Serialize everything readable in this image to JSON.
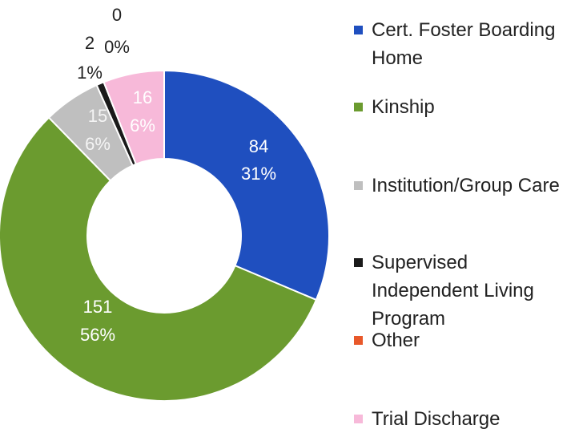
{
  "chart_data": {
    "type": "donut",
    "categories": [
      "Cert. Foster Boarding Home",
      "Kinship",
      "Institution/Group Care",
      "Supervised Independent Living Program",
      "Other",
      "Trial Discharge"
    ],
    "values": [
      84,
      151,
      15,
      2,
      0,
      16
    ],
    "percent_labels": [
      "31%",
      "56%",
      "6%",
      "1%",
      "0%",
      "6%"
    ],
    "colors": [
      "#1f4fbf",
      "#6b9b2f",
      "#bfbfbf",
      "#1a1a1a",
      "#e8582a",
      "#f7b9d9"
    ],
    "legend": "right"
  }
}
